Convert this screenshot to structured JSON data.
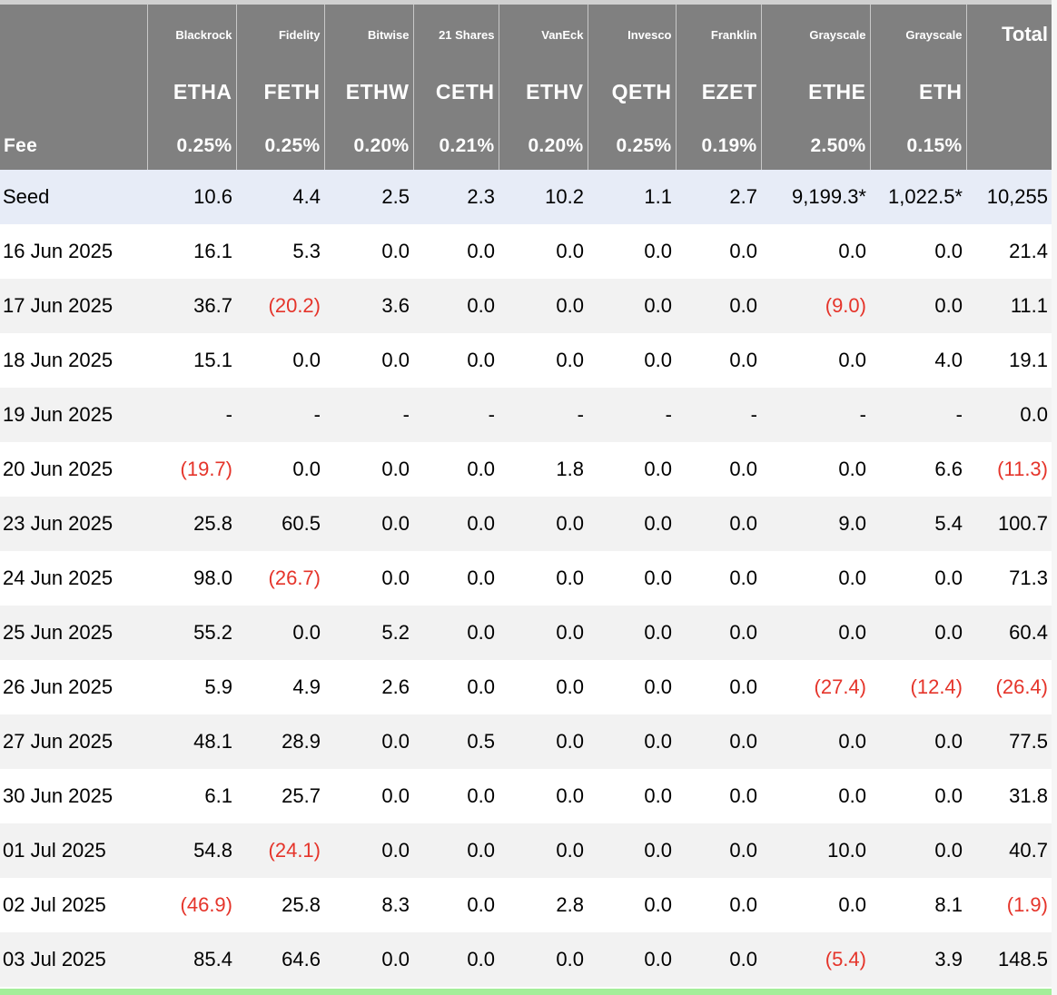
{
  "table": {
    "providers": [
      "",
      "Blackrock",
      "Fidelity",
      "Bitwise",
      "21 Shares",
      "VanEck",
      "Invesco",
      "Franklin",
      "Grayscale",
      "Grayscale",
      "Total"
    ],
    "tickers": [
      "",
      "ETHA",
      "FETH",
      "ETHW",
      "CETH",
      "ETHV",
      "QETH",
      "EZET",
      "ETHE",
      "ETH",
      ""
    ],
    "fees": [
      "Fee",
      "0.25%",
      "0.25%",
      "0.20%",
      "0.21%",
      "0.20%",
      "0.25%",
      "0.19%",
      "2.50%",
      "0.15%",
      ""
    ],
    "rows": [
      [
        "Seed",
        "10.6",
        "4.4",
        "2.5",
        "2.3",
        "10.2",
        "1.1",
        "2.7",
        "9,199.3*",
        "1,022.5*",
        "10,255"
      ],
      [
        "16 Jun 2025",
        "16.1",
        "5.3",
        "0.0",
        "0.0",
        "0.0",
        "0.0",
        "0.0",
        "0.0",
        "0.0",
        "21.4"
      ],
      [
        "17 Jun 2025",
        "36.7",
        "(20.2)",
        "3.6",
        "0.0",
        "0.0",
        "0.0",
        "0.0",
        "(9.0)",
        "0.0",
        "11.1"
      ],
      [
        "18 Jun 2025",
        "15.1",
        "0.0",
        "0.0",
        "0.0",
        "0.0",
        "0.0",
        "0.0",
        "0.0",
        "4.0",
        "19.1"
      ],
      [
        "19 Jun 2025",
        "-",
        "-",
        "-",
        "-",
        "-",
        "-",
        "-",
        "-",
        "-",
        "0.0"
      ],
      [
        "20 Jun 2025",
        "(19.7)",
        "0.0",
        "0.0",
        "0.0",
        "1.8",
        "0.0",
        "0.0",
        "0.0",
        "6.6",
        "(11.3)"
      ],
      [
        "23 Jun 2025",
        "25.8",
        "60.5",
        "0.0",
        "0.0",
        "0.0",
        "0.0",
        "0.0",
        "9.0",
        "5.4",
        "100.7"
      ],
      [
        "24 Jun 2025",
        "98.0",
        "(26.7)",
        "0.0",
        "0.0",
        "0.0",
        "0.0",
        "0.0",
        "0.0",
        "0.0",
        "71.3"
      ],
      [
        "25 Jun 2025",
        "55.2",
        "0.0",
        "5.2",
        "0.0",
        "0.0",
        "0.0",
        "0.0",
        "0.0",
        "0.0",
        "60.4"
      ],
      [
        "26 Jun 2025",
        "5.9",
        "4.9",
        "2.6",
        "0.0",
        "0.0",
        "0.0",
        "0.0",
        "(27.4)",
        "(12.4)",
        "(26.4)"
      ],
      [
        "27 Jun 2025",
        "48.1",
        "28.9",
        "0.0",
        "0.5",
        "0.0",
        "0.0",
        "0.0",
        "0.0",
        "0.0",
        "77.5"
      ],
      [
        "30 Jun 2025",
        "6.1",
        "25.7",
        "0.0",
        "0.0",
        "0.0",
        "0.0",
        "0.0",
        "0.0",
        "0.0",
        "31.8"
      ],
      [
        "01 Jul 2025",
        "54.8",
        "(24.1)",
        "0.0",
        "0.0",
        "0.0",
        "0.0",
        "0.0",
        "10.0",
        "0.0",
        "40.7"
      ],
      [
        "02 Jul 2025",
        "(46.9)",
        "25.8",
        "8.3",
        "0.0",
        "2.8",
        "0.0",
        "0.0",
        "0.0",
        "8.1",
        "(1.9)"
      ],
      [
        "03 Jul 2025",
        "85.4",
        "64.6",
        "0.0",
        "0.0",
        "0.0",
        "0.0",
        "0.0",
        "(5.4)",
        "3.9",
        "148.5"
      ]
    ]
  },
  "colors": {
    "header_bg": "#808080",
    "seed_row_bg": "#e7ecf7",
    "negative_text": "#e5342a",
    "footer_bar": "#a4ee9a"
  }
}
